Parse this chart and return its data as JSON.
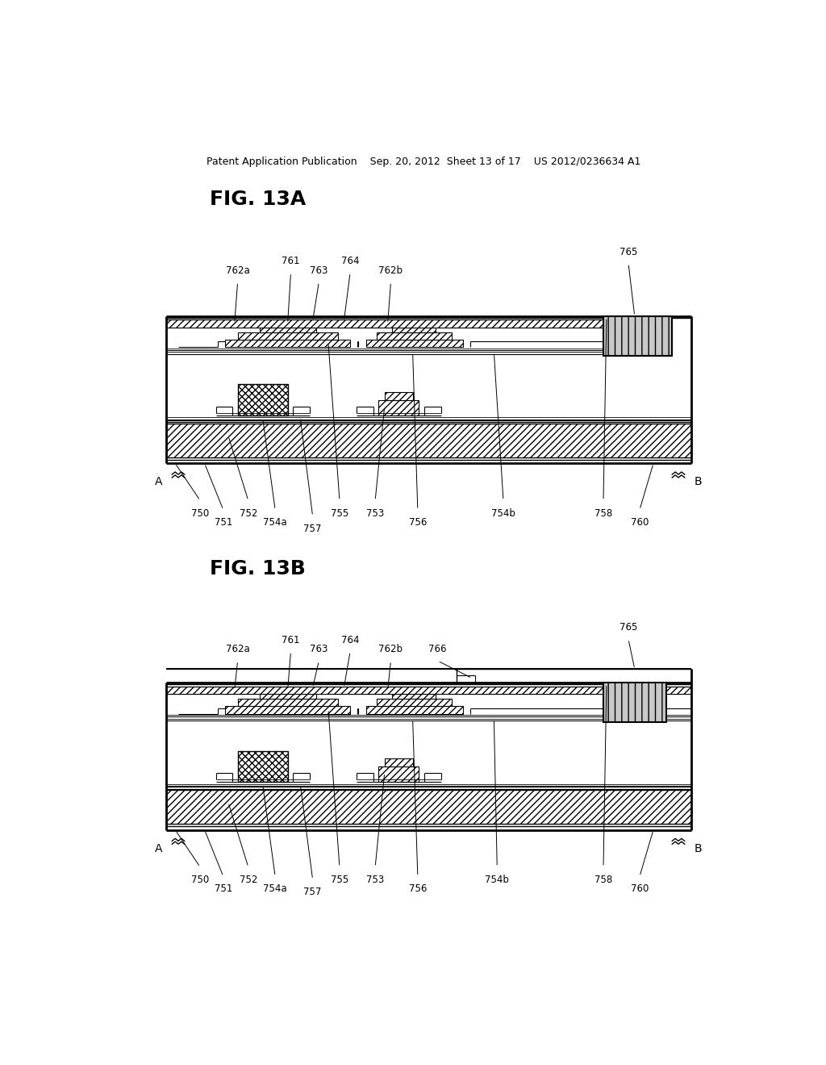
{
  "bg_color": "#ffffff",
  "header": "Patent Application Publication    Sep. 20, 2012  Sheet 13 of 17    US 2012/0236634 A1",
  "fig13a_title": "FIG. 13A",
  "fig13b_title": "FIG. 13B"
}
